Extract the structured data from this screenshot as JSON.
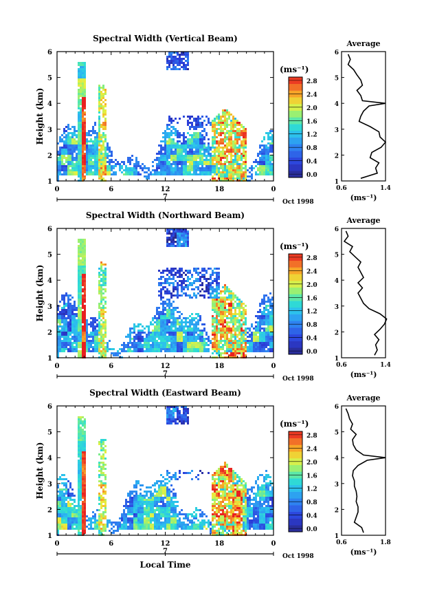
{
  "figure": {
    "xlabel": "Local Time",
    "date_label": "Oct 1998",
    "day_label": "7",
    "colorbar_unit": "(ms⁻¹)",
    "profile_unit": "(ms⁻¹)",
    "profile_title": "Average"
  },
  "chart_data": [
    {
      "type": "heatmap",
      "title": "Spectral Width (Vertical Beam)",
      "ylabel": "Height (km)",
      "xlabel": "",
      "x_ticks": [
        "0",
        "6",
        "12",
        "18",
        "0"
      ],
      "x_tick_values": [
        0,
        6,
        12,
        18,
        24
      ],
      "xlim": [
        0,
        24
      ],
      "y_ticks": [
        "1",
        "2",
        "3",
        "4",
        "5",
        "6"
      ],
      "ylim": [
        1,
        6
      ],
      "colorbar": {
        "ticks": [
          "0.0",
          "0.4",
          "0.8",
          "1.2",
          "1.6",
          "2.0",
          "2.4",
          "2.8"
        ],
        "range": [
          0,
          3.0
        ]
      },
      "profile": {
        "title": "Average",
        "x_ticks": [
          "0.6",
          "1.4"
        ],
        "xlim": [
          0.6,
          1.4
        ],
        "height": [
          1.1,
          1.3,
          1.5,
          1.7,
          1.9,
          2.1,
          2.3,
          2.5,
          2.7,
          2.9,
          3.1,
          3.3,
          3.5,
          3.7,
          3.9,
          4.0,
          4.1,
          4.3,
          4.5,
          4.7,
          4.9,
          5.1,
          5.3,
          5.5,
          5.7,
          5.9
        ],
        "value": [
          0.95,
          1.25,
          1.22,
          1.28,
          1.12,
          1.15,
          1.32,
          1.4,
          1.3,
          1.28,
          1.12,
          0.92,
          0.95,
          1.0,
          1.1,
          1.4,
          0.98,
          0.95,
          0.88,
          0.98,
          0.95,
          0.88,
          0.82,
          0.72,
          0.76,
          0.72
        ]
      }
    },
    {
      "type": "heatmap",
      "title": "Spectral Width (Northward Beam)",
      "ylabel": "Height (km)",
      "xlabel": "",
      "x_ticks": [
        "0",
        "6",
        "12",
        "18",
        "0"
      ],
      "x_tick_values": [
        0,
        6,
        12,
        18,
        24
      ],
      "xlim": [
        0,
        24
      ],
      "y_ticks": [
        "1",
        "2",
        "3",
        "4",
        "5",
        "6"
      ],
      "ylim": [
        1,
        6
      ],
      "colorbar": {
        "ticks": [
          "0.0",
          "0.4",
          "0.8",
          "1.2",
          "1.6",
          "2.0",
          "2.4",
          "2.8"
        ],
        "range": [
          0,
          3.0
        ]
      },
      "profile": {
        "title": "Average",
        "x_ticks": [
          "0.6",
          "1.4"
        ],
        "xlim": [
          0.6,
          1.4
        ],
        "height": [
          1.1,
          1.3,
          1.5,
          1.7,
          1.9,
          2.1,
          2.3,
          2.5,
          2.7,
          2.9,
          3.1,
          3.3,
          3.5,
          3.7,
          3.9,
          4.1,
          4.3,
          4.5,
          4.7,
          4.9,
          5.1,
          5.3,
          5.5,
          5.7,
          5.9
        ],
        "value": [
          1.2,
          1.25,
          1.22,
          1.28,
          1.2,
          1.3,
          1.38,
          1.42,
          1.3,
          1.1,
          1.0,
          0.95,
          0.9,
          0.98,
          0.9,
          1.0,
          0.95,
          0.9,
          0.95,
          0.85,
          0.75,
          0.8,
          0.65,
          0.72,
          0.68
        ]
      }
    },
    {
      "type": "heatmap",
      "title": "Spectral Width (Eastward Beam)",
      "ylabel": "Height (km)",
      "xlabel": "Local Time",
      "x_ticks": [
        "0",
        "6",
        "12",
        "18",
        "0"
      ],
      "x_tick_values": [
        0,
        6,
        12,
        18,
        24
      ],
      "xlim": [
        0,
        24
      ],
      "y_ticks": [
        "1",
        "2",
        "3",
        "4",
        "5",
        "6"
      ],
      "ylim": [
        1,
        6
      ],
      "colorbar": {
        "ticks": [
          "0.0",
          "0.4",
          "0.8",
          "1.2",
          "1.6",
          "2.0",
          "2.4",
          "2.8"
        ],
        "range": [
          0,
          3.0
        ]
      },
      "profile": {
        "title": "Average",
        "x_ticks": [
          "0.6",
          "1.8"
        ],
        "xlim": [
          0.6,
          1.8
        ],
        "height": [
          1.1,
          1.3,
          1.5,
          1.7,
          1.9,
          2.1,
          2.3,
          2.5,
          2.7,
          2.9,
          3.1,
          3.3,
          3.5,
          3.7,
          3.9,
          4.0,
          4.1,
          4.3,
          4.5,
          4.7,
          4.9,
          5.1,
          5.3,
          5.5,
          5.7,
          5.9
        ],
        "value": [
          1.2,
          1.15,
          0.95,
          1.0,
          1.05,
          1.05,
          1.0,
          1.02,
          1.0,
          0.95,
          0.95,
          0.9,
          0.92,
          1.05,
          1.3,
          1.8,
          1.2,
          1.0,
          0.92,
          0.9,
          1.0,
          0.85,
          0.9,
          0.82,
          0.78,
          0.72
        ]
      }
    }
  ]
}
